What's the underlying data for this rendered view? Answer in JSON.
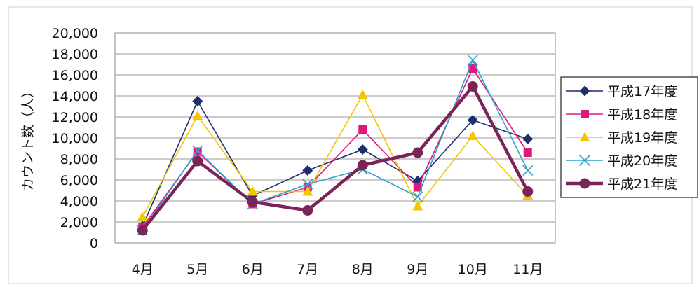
{
  "chart_data": {
    "type": "line",
    "title": "",
    "xlabel": "",
    "ylabel": "カウント数（人）",
    "categories": [
      "4月",
      "5月",
      "6月",
      "7月",
      "8月",
      "9月",
      "10月",
      "11月"
    ],
    "ylim": [
      0,
      20000
    ],
    "yticks": [
      "20,000",
      "18,000",
      "16,000",
      "14,000",
      "12,000",
      "10,000",
      "8,000",
      "6,000",
      "4,000",
      "2,000",
      "0"
    ],
    "grid": "horizontal",
    "legend_position": "right",
    "series": [
      {
        "name": "平成17年度",
        "color": "#1f2f6e",
        "marker": "diamond",
        "values": [
          1600,
          13500,
          4500,
          6900,
          8900,
          5900,
          11700,
          9900
        ]
      },
      {
        "name": "平成18年度",
        "color": "#e0187e",
        "marker": "square",
        "values": [
          1500,
          8700,
          3700,
          5300,
          10800,
          5300,
          16600,
          8600
        ]
      },
      {
        "name": "平成19年度",
        "color": "#f2c600",
        "marker": "triangle",
        "values": [
          2500,
          12100,
          4900,
          4900,
          14100,
          3500,
          10200,
          4500
        ]
      },
      {
        "name": "平成20年度",
        "color": "#2fa3cc",
        "marker": "x",
        "values": [
          1200,
          8800,
          3700,
          5600,
          7000,
          4400,
          17400,
          6900
        ]
      },
      {
        "name": "平成21年度",
        "color": "#7a2457",
        "marker": "circle",
        "values": [
          1200,
          7800,
          3900,
          3100,
          7400,
          8600,
          14900,
          4900
        ]
      }
    ]
  }
}
